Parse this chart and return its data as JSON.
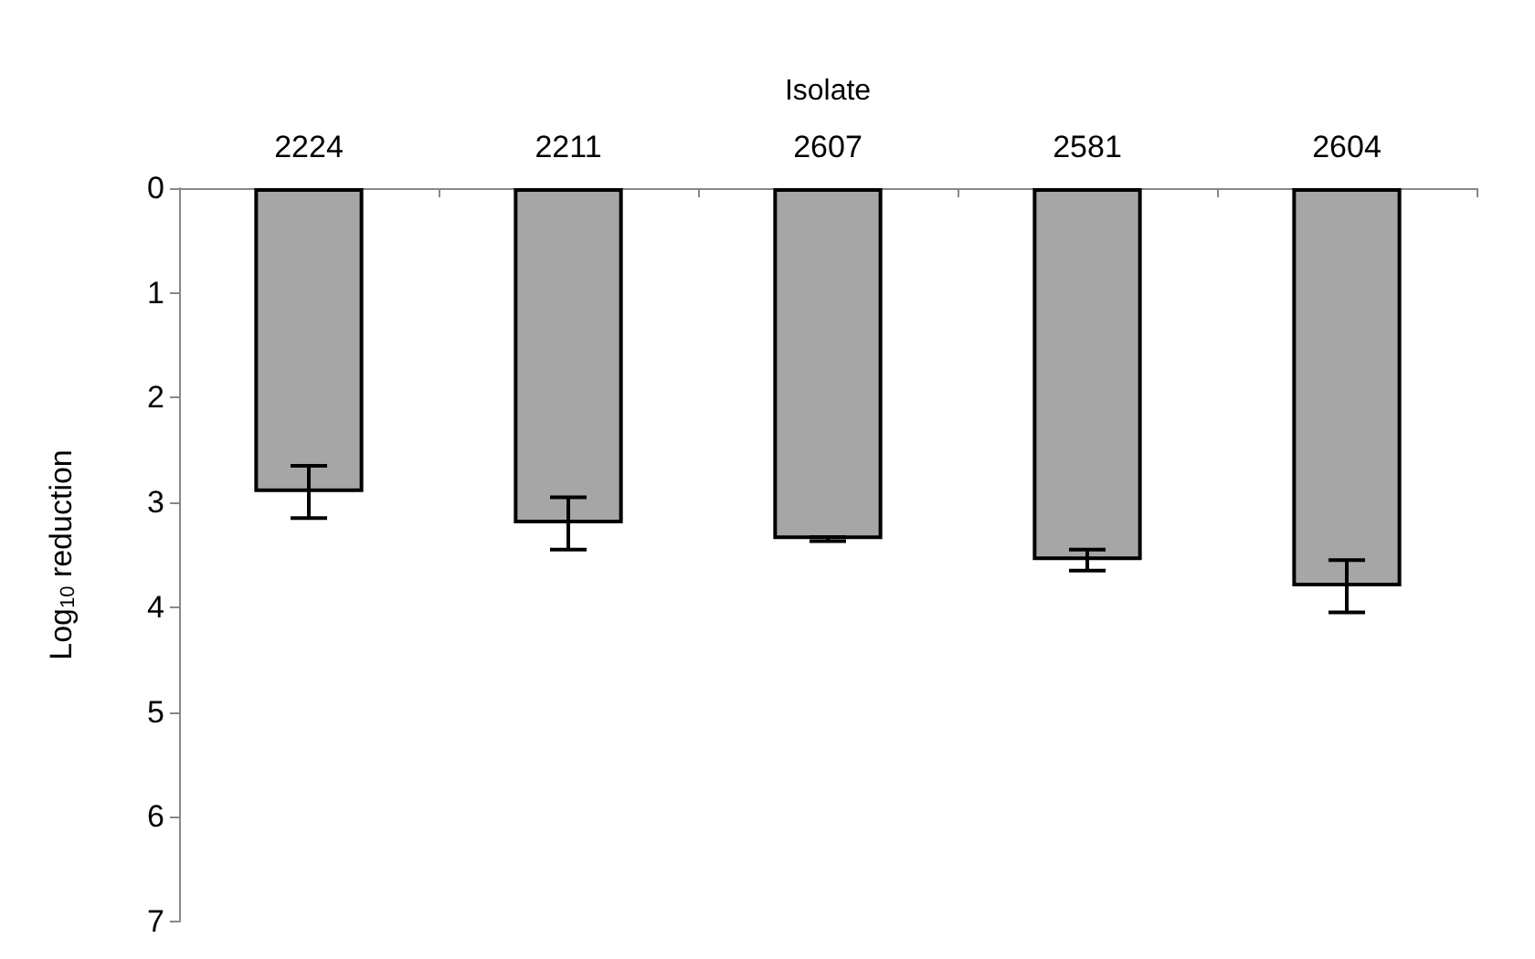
{
  "chart_data": {
    "type": "bar",
    "xlabel": "Isolate",
    "ylabel": "Log$_{10}$ reduction",
    "categories": [
      "2224",
      "2211",
      "2607",
      "2581",
      "2604"
    ],
    "values": [
      2.9,
      3.2,
      3.35,
      3.55,
      3.8
    ],
    "errors": [
      0.25,
      0.25,
      0.02,
      0.1,
      0.25
    ],
    "color": "#a6a6a6",
    "ylim": [
      7,
      0
    ],
    "yticks": [
      0,
      1,
      2,
      3,
      4,
      5,
      6,
      7
    ],
    "grid": false
  }
}
